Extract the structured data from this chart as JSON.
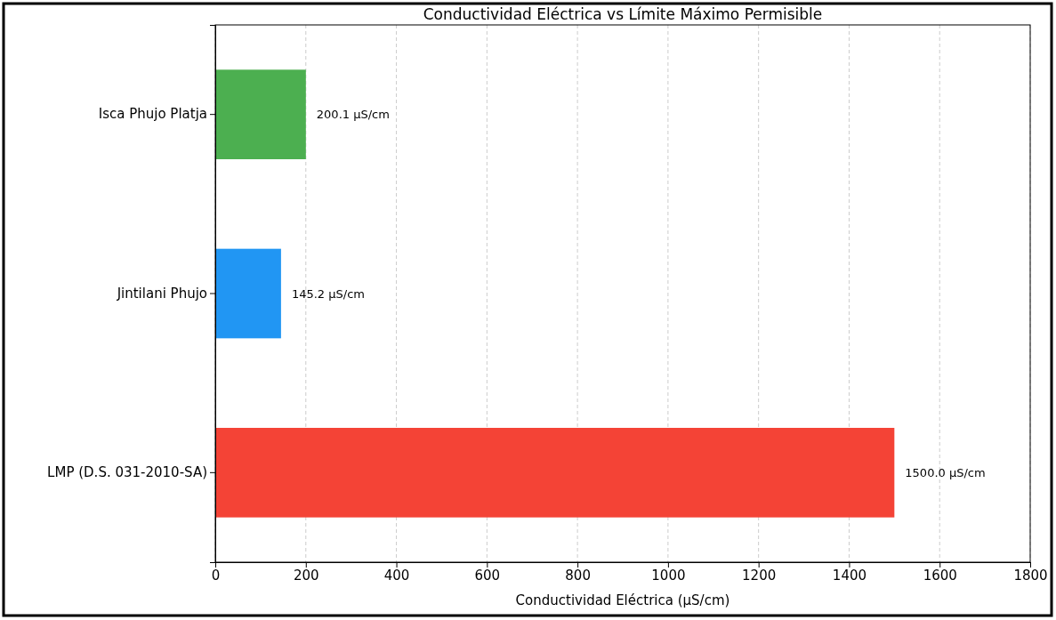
{
  "chart_data": {
    "type": "bar",
    "orientation": "horizontal",
    "title": "Conductividad Eléctrica vs Límite Máximo Permisible",
    "xlabel": "Conductividad Eléctrica (µS/cm)",
    "categories": [
      "Isca Phujo Platja",
      "Jintilani Phujo",
      "LMP (D.S. 031-2010-SA)"
    ],
    "values": [
      200.1,
      145.2,
      1500.0
    ],
    "colors": [
      "#4caf50",
      "#2196f3",
      "#f44336"
    ],
    "value_labels": [
      "200.1 µS/cm",
      "145.2 µS/cm",
      "1500.0 µS/cm"
    ],
    "xlim": [
      0,
      1800
    ],
    "xticks": [
      0,
      200,
      400,
      600,
      800,
      1000,
      1200,
      1400,
      1600,
      1800
    ],
    "grid": "x"
  }
}
